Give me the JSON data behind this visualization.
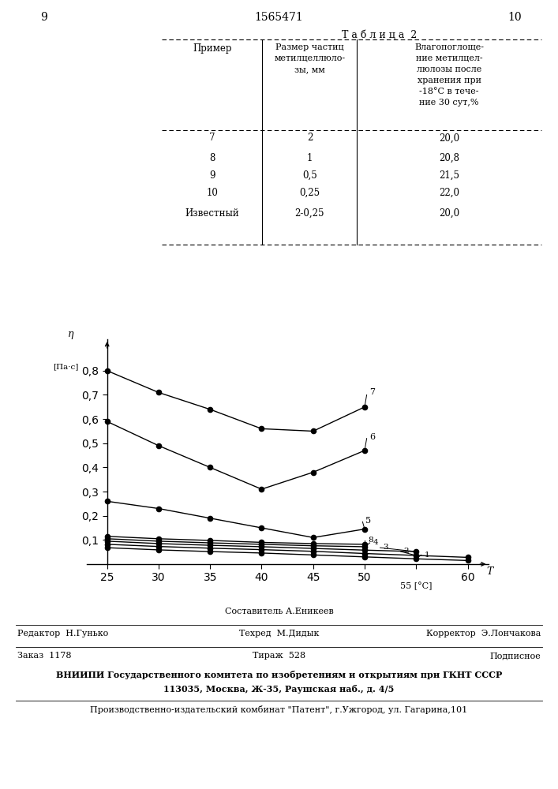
{
  "page_number_left": "9",
  "patent_number": "1565471",
  "page_number_right": "10",
  "table_title": "Т а б л и ц а  2",
  "table_headers": [
    "Пример",
    "Размер частиц\nметилцеллюло-\nзы, мм",
    "Влагопоглоще-\nние метилцел-\nлюлозы после\nхранения при\n-18°С в тече-\nние 30 сут,%"
  ],
  "table_data": [
    [
      "7",
      "2",
      "20,0"
    ],
    [
      "8",
      "1",
      "20,8"
    ],
    [
      "9",
      "0,5",
      "21,5"
    ],
    [
      "10",
      "0,25",
      "22,0"
    ],
    [
      "Известный",
      "2-0,25",
      "20,0"
    ]
  ],
  "xticks": [
    25,
    30,
    35,
    40,
    45,
    50,
    55,
    60
  ],
  "yticks": [
    0.1,
    0.2,
    0.3,
    0.4,
    0.5,
    0.6,
    0.7,
    0.8
  ],
  "curves": {
    "7": {
      "x": [
        25,
        30,
        35,
        40,
        45,
        50
      ],
      "y": [
        0.8,
        0.71,
        0.64,
        0.56,
        0.55,
        0.65
      ]
    },
    "6": {
      "x": [
        25,
        30,
        35,
        40,
        45,
        50
      ],
      "y": [
        0.59,
        0.49,
        0.4,
        0.31,
        0.38,
        0.47
      ]
    },
    "5": {
      "x": [
        25,
        30,
        35,
        40,
        45,
        50
      ],
      "y": [
        0.26,
        0.23,
        0.19,
        0.15,
        0.11,
        0.145
      ]
    },
    "8": {
      "x": [
        25,
        30,
        35,
        40,
        45,
        50
      ],
      "y": [
        0.115,
        0.105,
        0.098,
        0.09,
        0.085,
        0.082
      ]
    },
    "4": {
      "x": [
        25,
        30,
        35,
        40,
        45,
        50
      ],
      "y": [
        0.105,
        0.095,
        0.088,
        0.082,
        0.076,
        0.072
      ]
    },
    "3": {
      "x": [
        25,
        30,
        35,
        40,
        45,
        50,
        55
      ],
      "y": [
        0.095,
        0.085,
        0.078,
        0.072,
        0.065,
        0.058,
        0.052
      ]
    },
    "2": {
      "x": [
        25,
        30,
        35,
        40,
        45,
        50,
        55,
        60
      ],
      "y": [
        0.082,
        0.073,
        0.066,
        0.06,
        0.053,
        0.044,
        0.036,
        0.028
      ]
    },
    "1": {
      "x": [
        25,
        30,
        35,
        40,
        45,
        50,
        55,
        60
      ],
      "y": [
        0.068,
        0.059,
        0.052,
        0.046,
        0.038,
        0.03,
        0.022,
        0.015
      ]
    }
  },
  "bg_color": "#ffffff"
}
